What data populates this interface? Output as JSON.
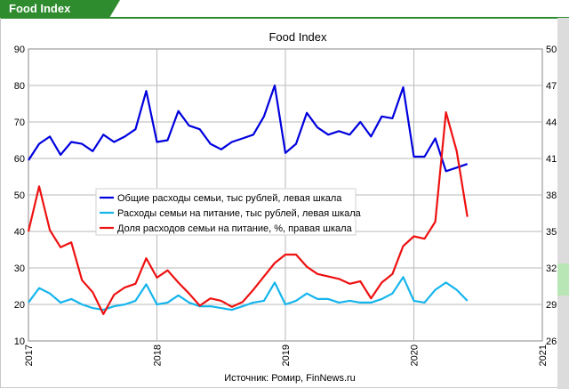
{
  "header": {
    "title": "Food Index"
  },
  "colors": {
    "header_green": "#2e8b2e",
    "series_total": "#0000dd",
    "series_food": "#15b5ec",
    "series_share": "#ee1111"
  },
  "chart_data": {
    "type": "line",
    "title": "Food Index",
    "source": "Источник: Ромир, FinNews.ru",
    "x_ticks": [
      "2017",
      "2018",
      "2019",
      "2020",
      "2021"
    ],
    "xlim": [
      "2017-01",
      "2021-01"
    ],
    "y_left": {
      "ylim": [
        10,
        90
      ],
      "ticks": [
        "10",
        "20",
        "30",
        "40",
        "50",
        "60",
        "70",
        "80",
        "90"
      ]
    },
    "y_right": {
      "ylim": [
        26,
        50
      ],
      "ticks": [
        "26",
        "29",
        "32",
        "35",
        "38",
        "41",
        "44",
        "47",
        "50"
      ]
    },
    "grid": true,
    "legend_position": "left-middle",
    "x": [
      "2017-01",
      "2017-02",
      "2017-03",
      "2017-04",
      "2017-05",
      "2017-06",
      "2017-07",
      "2017-08",
      "2017-09",
      "2017-10",
      "2017-11",
      "2017-12",
      "2018-01",
      "2018-02",
      "2018-03",
      "2018-04",
      "2018-05",
      "2018-06",
      "2018-07",
      "2018-08",
      "2018-09",
      "2018-10",
      "2018-11",
      "2018-12",
      "2019-01",
      "2019-02",
      "2019-03",
      "2019-04",
      "2019-05",
      "2019-06",
      "2019-07",
      "2019-08",
      "2019-09",
      "2019-10",
      "2019-11",
      "2019-12",
      "2020-01",
      "2020-02",
      "2020-03",
      "2020-04",
      "2020-05",
      "2020-06"
    ],
    "series": [
      {
        "name": "Общие расходы семьи, тыс рублей, левая шкала",
        "axis": "left",
        "color": "#0000dd",
        "values": [
          59.5,
          64,
          66,
          61,
          64.5,
          64,
          62,
          66.5,
          64.5,
          66,
          68,
          78.5,
          64.5,
          65,
          73,
          69,
          68,
          64,
          62.5,
          64.5,
          65.5,
          66.5,
          71.5,
          80,
          61.5,
          64,
          72.5,
          68.5,
          66.5,
          67.5,
          66.5,
          70,
          66,
          71.5,
          71,
          79.5,
          60.5,
          60.5,
          65.5,
          56.5,
          57.5,
          58.5
        ]
      },
      {
        "name": "Расходы семьи на питание, тыс рублей, левая шкала",
        "axis": "left",
        "color": "#15b5ec",
        "values": [
          20.5,
          24.5,
          23,
          20.5,
          21.5,
          20,
          19,
          18.5,
          19.5,
          20,
          21,
          25.5,
          20,
          20.5,
          22.5,
          20.5,
          19.5,
          19.5,
          19,
          18.5,
          19.5,
          20.5,
          21,
          26,
          20,
          21,
          23,
          21.5,
          21.5,
          20.5,
          21,
          20.5,
          20.5,
          21.5,
          23,
          27.5,
          21,
          20.5,
          24,
          26,
          24,
          21
        ]
      },
      {
        "name": "Доля расходов семьи на питание, %, правая шкала",
        "axis": "right",
        "color": "#ee1111",
        "values": [
          35,
          38.7,
          35.1,
          33.7,
          34.1,
          31,
          30,
          28.2,
          29.8,
          30.4,
          30.7,
          32.8,
          31.2,
          31.8,
          30.8,
          29.9,
          28.9,
          29.5,
          29.3,
          28.8,
          29.2,
          30.2,
          31.3,
          32.4,
          33.1,
          33.1,
          32.1,
          31.5,
          31.3,
          31.1,
          30.7,
          30.9,
          29.5,
          30.8,
          31.5,
          33.8,
          34.6,
          34.4,
          35.8,
          44.8,
          41.6,
          36.2
        ]
      }
    ]
  }
}
